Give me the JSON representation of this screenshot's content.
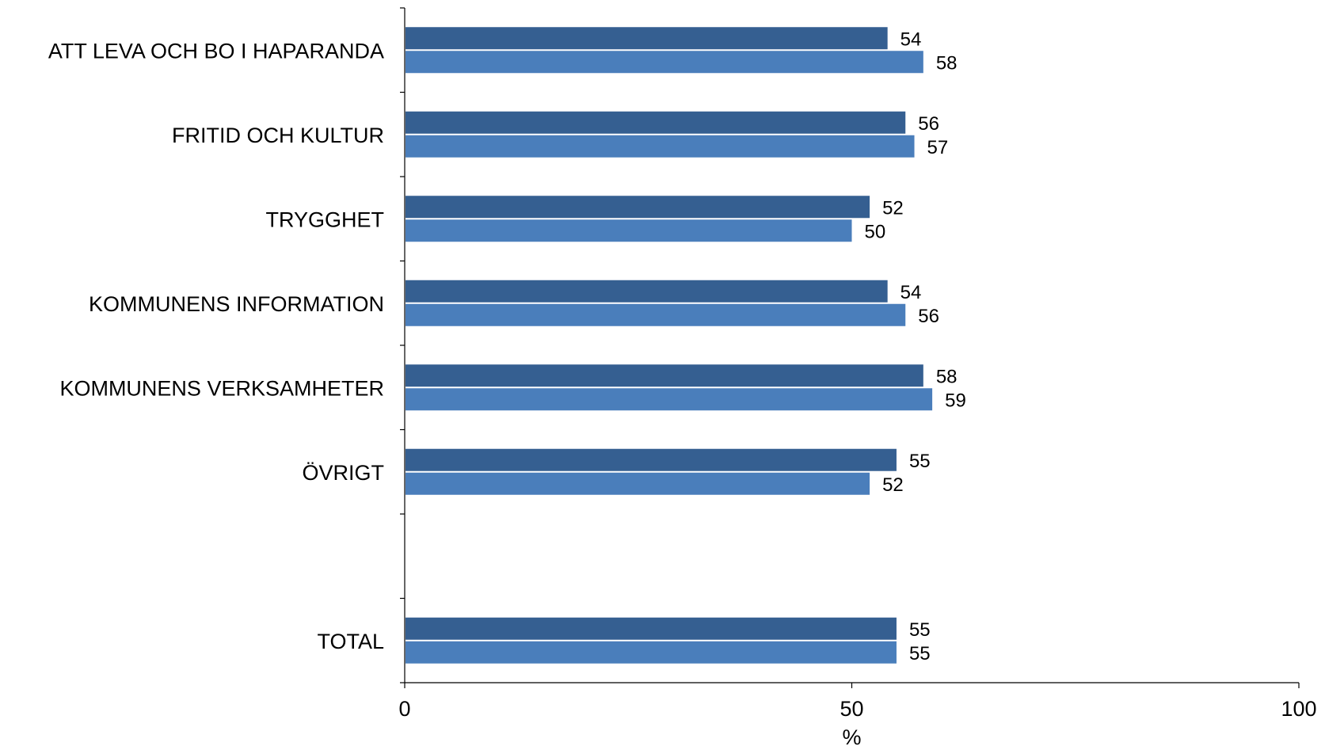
{
  "chart_data": {
    "type": "bar",
    "orientation": "horizontal",
    "categories": [
      "ATT LEVA OCH BO I HAPARANDA",
      "FRITID OCH KULTUR",
      "TRYGGHET",
      "KOMMUNENS INFORMATION",
      "KOMMUNENS VERKSAMHETER",
      "ÖVRIGT",
      "",
      "TOTAL"
    ],
    "series": [
      {
        "color": "#355f91",
        "values": [
          54,
          56,
          52,
          54,
          58,
          55,
          null,
          55
        ]
      },
      {
        "color": "#4a7ebb",
        "values": [
          58,
          57,
          50,
          56,
          59,
          52,
          null,
          55
        ]
      }
    ],
    "xlim": [
      0,
      100
    ],
    "xticks": [
      0,
      50,
      100
    ],
    "xlabel": "%",
    "title": "",
    "grid": false,
    "legend": "none"
  }
}
